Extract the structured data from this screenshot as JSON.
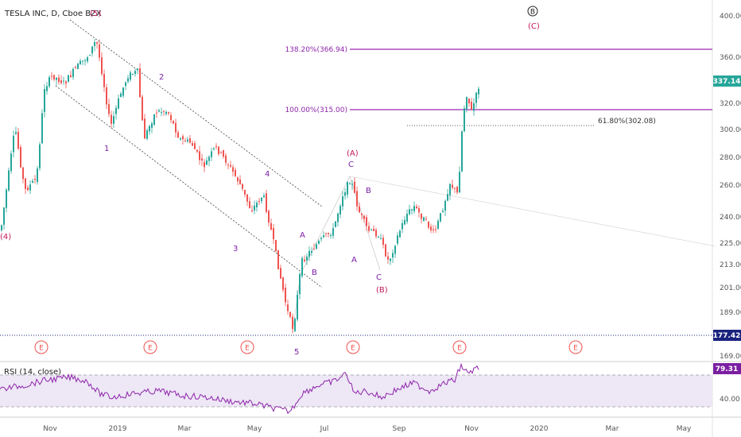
{
  "header": {
    "symbol_line": "TESLA INC, D, Cboe BZX"
  },
  "rsi": {
    "label": "RSI (14, close)",
    "value_badge": "79.31",
    "level_label": "40.00"
  },
  "price_badges": {
    "current": "337.14",
    "support": "177.42"
  },
  "colors": {
    "up": "#26a69a",
    "down": "#ef5350",
    "fib": "#9c27b0",
    "rsi_line": "#8e24aa",
    "rsi_band": "#ede7f6",
    "wave_red": "#c2185b",
    "wave_purple": "#7b1fa2",
    "support": "#1a237e",
    "badge_green": "#26a69a"
  },
  "fib_labels": {
    "f138": "138.20%(366.94)",
    "f100": "100.00%(315.00)",
    "f618": "61.80%(302.08)"
  },
  "wave_labels": {
    "w5_top": "(5)",
    "w4": "(4)",
    "w1": "1",
    "w2": "2",
    "w3": "3",
    "w4b": "4",
    "w5": "5",
    "A1": "A",
    "B1": "B",
    "A2": "A",
    "C1": "C",
    "B2": "B",
    "C2": "C",
    "pA": "(A)",
    "pB": "(B)",
    "pC": "(C)",
    "circleB": "B"
  },
  "earnings_marker": "E",
  "chart_data": {
    "type": "candlestick",
    "title": "TESLA INC, D, Cboe BZX",
    "x_ticks": [
      "Nov",
      "2019",
      "Mar",
      "May",
      "Jul",
      "Sep",
      "Nov",
      "2020",
      "Mar",
      "May"
    ],
    "y_ticks": [
      169.0,
      177.42,
      189.0,
      201.0,
      213.0,
      225.0,
      240.0,
      260.0,
      280.0,
      300.0,
      320.0,
      337.14,
      360.0,
      400.0
    ],
    "y_tick_labels": [
      "169.00",
      "177.42",
      "189.00",
      "201.00",
      "213.00",
      "225.00",
      "240.00",
      "260.00",
      "280.00",
      "300.00",
      "320.00",
      "337.14",
      "360.00",
      "400.00"
    ],
    "y_scale": "log",
    "ylim": [
      169,
      400
    ],
    "fib_levels": [
      366.94,
      315.0,
      302.08
    ],
    "support_level": 177.42,
    "last_price": 337.14,
    "key_points": [
      {
        "date": "2018-10-25",
        "price": 255,
        "label": "(4)"
      },
      {
        "date": "2018-12-13",
        "price": 380,
        "label": "(5)"
      },
      {
        "date": "2019-01-02",
        "price": 300,
        "label": "1"
      },
      {
        "date": "2019-02-19",
        "price": 310,
        "label": "2"
      },
      {
        "date": "2019-04-25",
        "price": 240,
        "label": "3"
      },
      {
        "date": "2019-05-06",
        "price": 260,
        "label": "4"
      },
      {
        "date": "2019-06-03",
        "price": 177.42,
        "label": "5"
      },
      {
        "date": "2019-07-19",
        "price": 262,
        "label": "(A)"
      },
      {
        "date": "2019-08-15",
        "price": 212,
        "label": "(B)"
      },
      {
        "date": "2019-09-24",
        "price": 262,
        "label": ""
      },
      {
        "date": "2019-10-23",
        "price": 300,
        "label": ""
      },
      {
        "date": "2019-11-05",
        "price": 337.14,
        "label": ""
      }
    ],
    "rsi": {
      "last": 79.31,
      "level": 40.0
    },
    "grid": false
  }
}
